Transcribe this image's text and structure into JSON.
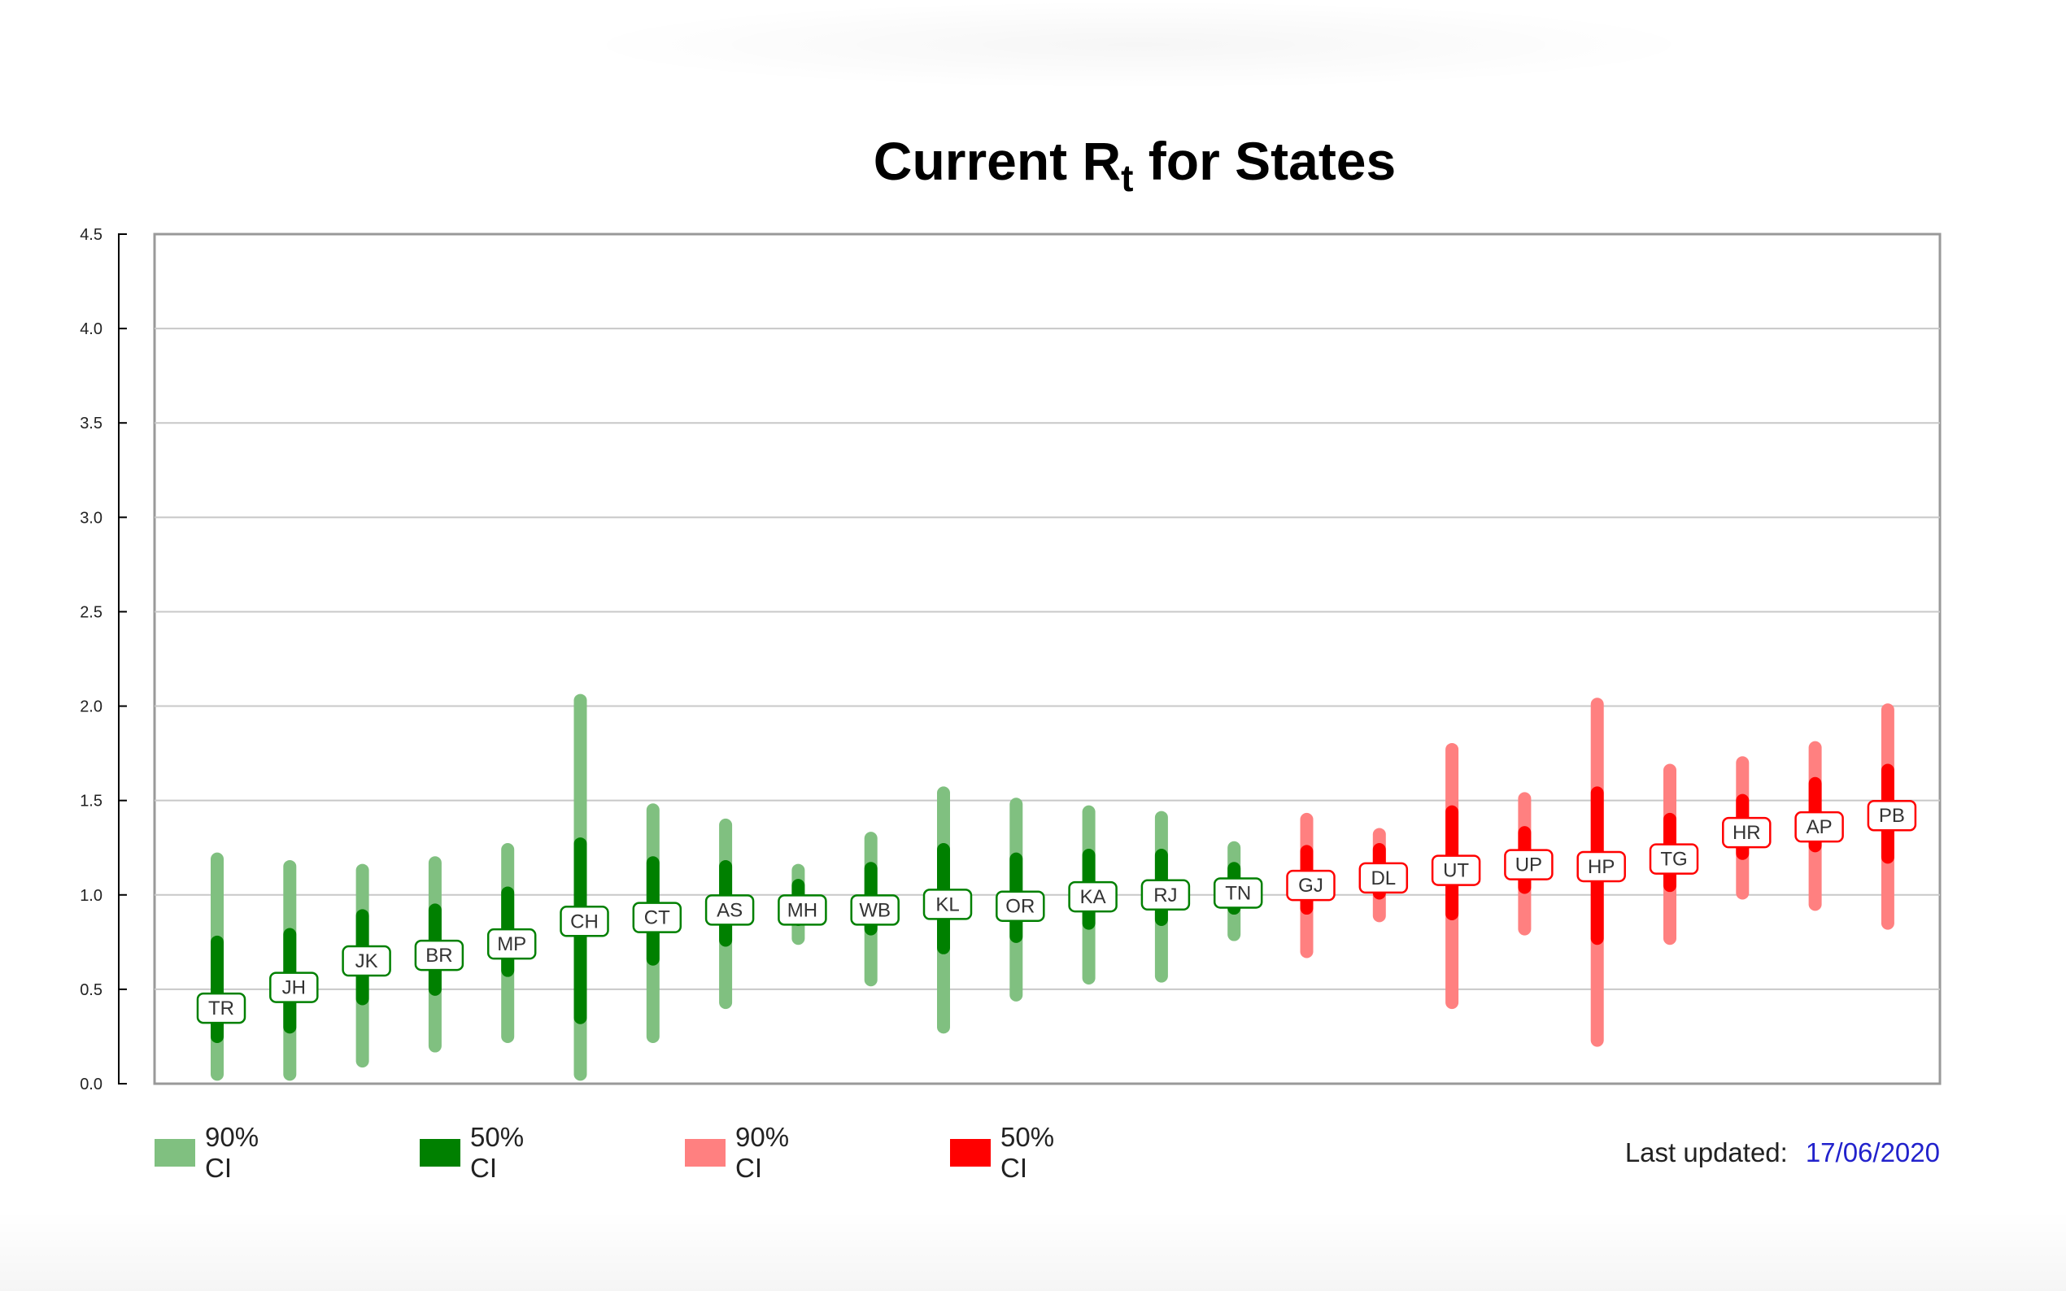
{
  "chart_data": {
    "type": "range",
    "title_main": "Current R",
    "title_sub": "t",
    "title_rest": " for States",
    "ylim": [
      0,
      4.5
    ],
    "yticks": [
      "0.0",
      "0.5",
      "1.0",
      "1.5",
      "2.0",
      "2.5",
      "3.0",
      "3.5",
      "4.0",
      "4.5"
    ],
    "grid": true,
    "states": [
      {
        "code": "TR",
        "rt": 0.4,
        "ci50": [
          0.25,
          0.75
        ],
        "ci90": [
          0.05,
          1.19
        ],
        "group": "green"
      },
      {
        "code": "JH",
        "rt": 0.51,
        "ci50": [
          0.3,
          0.79
        ],
        "ci90": [
          0.05,
          1.15
        ],
        "group": "green"
      },
      {
        "code": "JK",
        "rt": 0.65,
        "ci50": [
          0.45,
          0.89
        ],
        "ci90": [
          0.12,
          1.13
        ],
        "group": "green"
      },
      {
        "code": "BR",
        "rt": 0.68,
        "ci50": [
          0.5,
          0.92
        ],
        "ci90": [
          0.2,
          1.17
        ],
        "group": "green"
      },
      {
        "code": "MP",
        "rt": 0.74,
        "ci50": [
          0.6,
          1.01
        ],
        "ci90": [
          0.25,
          1.24
        ],
        "group": "green"
      },
      {
        "code": "CH",
        "rt": 0.86,
        "ci50": [
          0.35,
          1.27
        ],
        "ci90": [
          0.05,
          2.03
        ],
        "group": "green"
      },
      {
        "code": "CT",
        "rt": 0.88,
        "ci50": [
          0.66,
          1.17
        ],
        "ci90": [
          0.25,
          1.45
        ],
        "group": "green"
      },
      {
        "code": "AS",
        "rt": 0.92,
        "ci50": [
          0.76,
          1.15
        ],
        "ci90": [
          0.43,
          1.37
        ],
        "group": "green"
      },
      {
        "code": "MH",
        "rt": 0.92,
        "ci50": [
          0.87,
          1.05
        ],
        "ci90": [
          0.77,
          1.13
        ],
        "group": "green"
      },
      {
        "code": "WB",
        "rt": 0.92,
        "ci50": [
          0.82,
          1.14
        ],
        "ci90": [
          0.55,
          1.3
        ],
        "group": "green"
      },
      {
        "code": "KL",
        "rt": 0.95,
        "ci50": [
          0.72,
          1.24
        ],
        "ci90": [
          0.3,
          1.54
        ],
        "group": "green"
      },
      {
        "code": "OR",
        "rt": 0.94,
        "ci50": [
          0.78,
          1.19
        ],
        "ci90": [
          0.47,
          1.48
        ],
        "group": "green"
      },
      {
        "code": "KA",
        "rt": 0.99,
        "ci50": [
          0.85,
          1.21
        ],
        "ci90": [
          0.56,
          1.44
        ],
        "group": "green"
      },
      {
        "code": "RJ",
        "rt": 1.0,
        "ci50": [
          0.87,
          1.21
        ],
        "ci90": [
          0.57,
          1.41
        ],
        "group": "green"
      },
      {
        "code": "TN",
        "rt": 1.01,
        "ci50": [
          0.93,
          1.14
        ],
        "ci90": [
          0.79,
          1.25
        ],
        "group": "green"
      },
      {
        "code": "GJ",
        "rt": 1.05,
        "ci50": [
          0.93,
          1.23
        ],
        "ci90": [
          0.7,
          1.4
        ],
        "group": "red"
      },
      {
        "code": "DL",
        "rt": 1.09,
        "ci50": [
          1.01,
          1.24
        ],
        "ci90": [
          0.89,
          1.32
        ],
        "group": "red"
      },
      {
        "code": "UT",
        "rt": 1.13,
        "ci50": [
          0.9,
          1.44
        ],
        "ci90": [
          0.43,
          1.77
        ],
        "group": "red"
      },
      {
        "code": "UP",
        "rt": 1.16,
        "ci50": [
          1.04,
          1.33
        ],
        "ci90": [
          0.82,
          1.51
        ],
        "group": "red"
      },
      {
        "code": "HP",
        "rt": 1.15,
        "ci50": [
          0.77,
          1.54
        ],
        "ci90": [
          0.23,
          2.01
        ],
        "group": "red"
      },
      {
        "code": "TG",
        "rt": 1.19,
        "ci50": [
          1.05,
          1.4
        ],
        "ci90": [
          0.77,
          1.66
        ],
        "group": "red"
      },
      {
        "code": "HR",
        "rt": 1.33,
        "ci50": [
          1.22,
          1.5
        ],
        "ci90": [
          1.01,
          1.7
        ],
        "group": "red"
      },
      {
        "code": "AP",
        "rt": 1.36,
        "ci50": [
          1.26,
          1.59
        ],
        "ci90": [
          0.95,
          1.78
        ],
        "group": "red"
      },
      {
        "code": "PB",
        "rt": 1.42,
        "ci50": [
          1.2,
          1.66
        ],
        "ci90": [
          0.85,
          1.98
        ],
        "group": "red"
      }
    ],
    "colors": {
      "green90": "#80c080",
      "green50": "#008000",
      "red90": "#ff8080",
      "red50": "#ff0000",
      "grid": "#c8c8c8",
      "frame": "#999999"
    },
    "legend": [
      {
        "label": "90% CI",
        "color": "#80c080"
      },
      {
        "label": "50% CI",
        "color": "#008000"
      },
      {
        "label": "90% CI",
        "color": "#ff8080"
      },
      {
        "label": "50% CI",
        "color": "#ff0000"
      }
    ],
    "legend_position": "bottom-left"
  },
  "footer": {
    "updated_label": "Last updated:",
    "updated_date": "17/06/2020"
  }
}
